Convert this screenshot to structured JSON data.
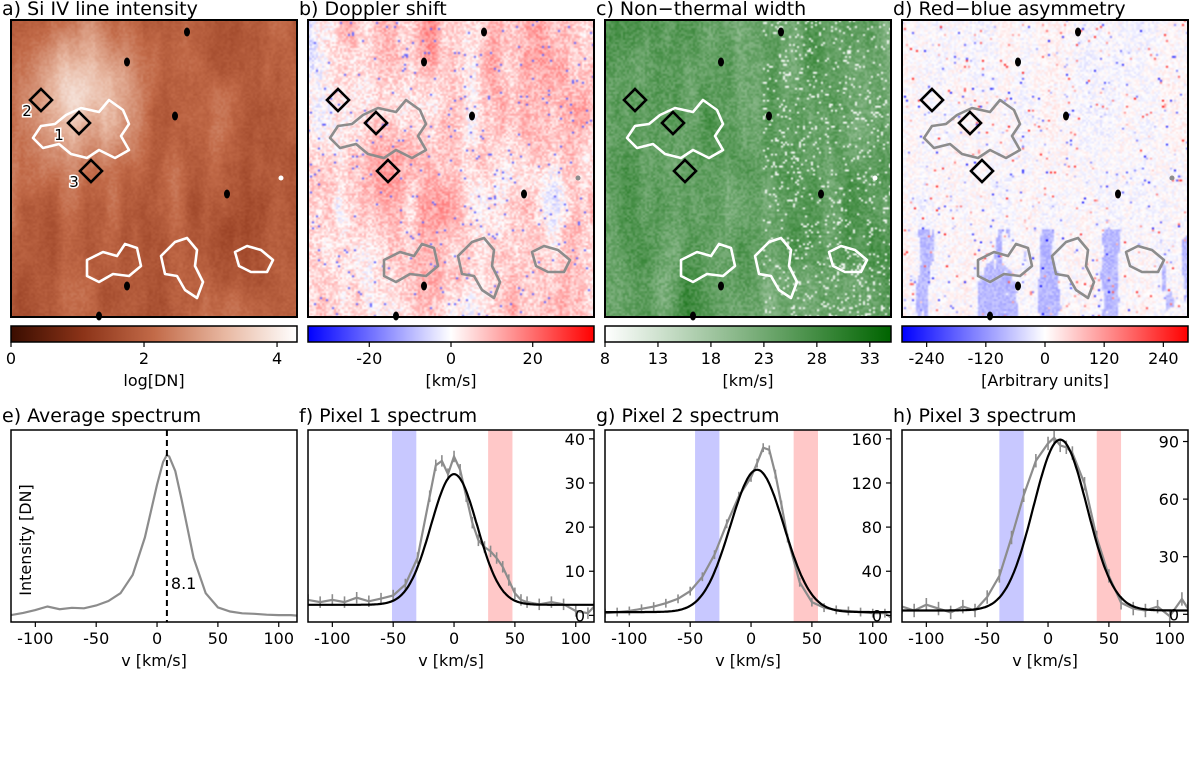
{
  "colors": {
    "intensity_map": [
      "#3a0d00",
      "#8b3318",
      "#c26a48",
      "#e8b8a2",
      "#ffffff"
    ],
    "doppler_map": [
      "#0000ff",
      "#ffffff",
      "#ff0000"
    ],
    "width_map": [
      "#ffffff",
      "#006400"
    ],
    "asym_map": [
      "#0000ff",
      "#ffffff",
      "#ff0000"
    ],
    "spectrum_line": "#8c8c8c",
    "fit_line": "#000000",
    "blue_band": "#c8c8ff",
    "red_band": "#ffc8c8",
    "contour_white": "#ffffff",
    "contour_gray": "#8c8c8c"
  },
  "chart_data": [
    {
      "type": "heatmap",
      "panel": "a",
      "title": "a) Si IV line intensity",
      "colorbar": {
        "label": "log[DN]",
        "range": [
          0,
          4.3
        ],
        "ticks": [
          0,
          2,
          4
        ],
        "tick_labels": [
          "0",
          "2",
          "4"
        ],
        "colormap": "intensity_map"
      },
      "contour_color": "contour_white",
      "markers": [
        {
          "label": "1"
        },
        {
          "label": "2"
        },
        {
          "label": "3"
        }
      ]
    },
    {
      "type": "heatmap",
      "panel": "b",
      "title": "b) Doppler shift",
      "colorbar": {
        "label": "[km/s]",
        "range": [
          -35,
          35
        ],
        "ticks": [
          -20,
          0,
          20
        ],
        "tick_labels": [
          "-20",
          "0",
          "20"
        ],
        "colormap": "doppler_map"
      },
      "contour_color": "contour_gray"
    },
    {
      "type": "heatmap",
      "panel": "c",
      "title": "c) Non−thermal width",
      "colorbar": {
        "label": "[km/s]",
        "range": [
          8,
          35
        ],
        "ticks": [
          8,
          13,
          18,
          23,
          28,
          33
        ],
        "tick_labels": [
          "8",
          "13",
          "18",
          "23",
          "28",
          "33"
        ],
        "colormap": "width_map"
      },
      "contour_color": "contour_white"
    },
    {
      "type": "heatmap",
      "panel": "d",
      "title": "d) Red−blue asymmetry",
      "colorbar": {
        "label": "[Arbitrary units]",
        "range": [
          -290,
          290
        ],
        "ticks": [
          -240,
          -120,
          0,
          120,
          240
        ],
        "tick_labels": [
          "-240",
          "-120",
          "0",
          "120",
          "240"
        ],
        "colormap": "asym_map"
      },
      "contour_color": "contour_gray"
    },
    {
      "type": "line",
      "panel": "e",
      "title": "e) Average spectrum",
      "xlabel": "v [km/s]",
      "ylabel": "Intensity [DN]",
      "xlim": [
        -120,
        115
      ],
      "ylim": [
        0,
        42
      ],
      "xticks": [
        -100,
        -50,
        0,
        50,
        100
      ],
      "xtick_labels": [
        "-100",
        "-50",
        "0",
        "50",
        "100"
      ],
      "yticks": [],
      "vline": {
        "x": 8.1,
        "label": "8.1"
      },
      "series": [
        {
          "name": "average",
          "color": "spectrum_line",
          "x": [
            -120,
            -110,
            -100,
            -90,
            -80,
            -70,
            -60,
            -50,
            -40,
            -30,
            -20,
            -10,
            0,
            5,
            8,
            10,
            15,
            20,
            30,
            40,
            50,
            60,
            70,
            80,
            90,
            100,
            110,
            115
          ],
          "y": [
            1.5,
            2.0,
            2.6,
            3.4,
            2.8,
            3.1,
            3.0,
            3.6,
            4.6,
            6.3,
            10.3,
            18.5,
            30.0,
            35.0,
            36.5,
            36.2,
            33.0,
            27.0,
            14.0,
            6.3,
            3.2,
            2.3,
            1.9,
            1.8,
            1.6,
            1.5,
            1.5,
            1.4
          ]
        }
      ]
    },
    {
      "type": "line",
      "panel": "f",
      "title": "f) Pixel 1 spectrum",
      "xlabel": "v [km/s]",
      "xlim": [
        -120,
        115
      ],
      "ylim": [
        -1.5,
        42
      ],
      "xticks": [
        -100,
        -50,
        0,
        50,
        100
      ],
      "xtick_labels": [
        "-100",
        "-50",
        "0",
        "50",
        "100"
      ],
      "yticks": [
        0,
        10,
        20,
        30,
        40
      ],
      "ytick_labels": [
        "0",
        "10",
        "20",
        "30",
        "40"
      ],
      "bands": [
        {
          "from": -51,
          "to": -31,
          "color": "blue_band"
        },
        {
          "from": 28,
          "to": 48,
          "color": "red_band"
        }
      ],
      "series": [
        {
          "name": "observed",
          "color": "spectrum_line",
          "errorbars": true,
          "x": [
            -120,
            -110,
            -100,
            -90,
            -80,
            -70,
            -60,
            -50,
            -40,
            -30,
            -20,
            -15,
            -10,
            -5,
            0,
            5,
            10,
            15,
            20,
            25,
            30,
            35,
            40,
            45,
            50,
            55,
            60,
            70,
            80,
            90,
            100,
            110,
            115
          ],
          "y": [
            3.5,
            3.0,
            3.5,
            3.0,
            4.0,
            3.2,
            3.8,
            4.5,
            7.0,
            13.0,
            27.0,
            34.0,
            35.0,
            32.0,
            36.0,
            33.0,
            27.0,
            21.0,
            17.0,
            15.5,
            14.5,
            13.0,
            11.0,
            8.0,
            5.0,
            3.5,
            3.0,
            2.5,
            3.0,
            2.5,
            1.0,
            0.5,
            2.0
          ],
          "err": 1.3
        },
        {
          "name": "gaussian fit",
          "color": "fit_line",
          "model": "gaussian",
          "amplitude": 29.6,
          "center": 0,
          "sigma": 19,
          "baseline": 2.4
        }
      ]
    },
    {
      "type": "line",
      "panel": "g",
      "title": "g) Pixel 2 spectrum",
      "xlabel": "v [km/s]",
      "xlim": [
        -120,
        115
      ],
      "ylim": [
        -6,
        168
      ],
      "xticks": [
        -100,
        -50,
        0,
        50,
        100
      ],
      "xtick_labels": [
        "-100",
        "-50",
        "0",
        "50",
        "100"
      ],
      "yticks": [
        0,
        40,
        80,
        120,
        160
      ],
      "ytick_labels": [
        "0",
        "40",
        "80",
        "120",
        "160"
      ],
      "bands": [
        {
          "from": -46,
          "to": -26,
          "color": "blue_band"
        },
        {
          "from": 35,
          "to": 55,
          "color": "red_band"
        }
      ],
      "series": [
        {
          "name": "observed",
          "color": "spectrum_line",
          "errorbars": true,
          "x": [
            -120,
            -110,
            -100,
            -90,
            -80,
            -70,
            -60,
            -50,
            -40,
            -30,
            -20,
            -10,
            0,
            5,
            10,
            15,
            20,
            25,
            30,
            40,
            50,
            60,
            70,
            80,
            90,
            100,
            110,
            115
          ],
          "y": [
            2.0,
            3.0,
            4.0,
            6.0,
            8.0,
            11.0,
            15.0,
            22.0,
            35.0,
            55.0,
            83.0,
            108.0,
            125.0,
            138.0,
            152.0,
            150.0,
            128.0,
            100.0,
            70.0,
            30.0,
            12.0,
            7.0,
            5.0,
            4.0,
            3.0,
            2.0,
            2.0,
            -2.0
          ],
          "err": 4
        },
        {
          "name": "gaussian fit",
          "color": "fit_line",
          "model": "gaussian",
          "amplitude": 129,
          "center": 5,
          "sigma": 22,
          "baseline": 3
        }
      ]
    },
    {
      "type": "line",
      "panel": "h",
      "title": "h) Pixel 3 spectrum",
      "xlabel": "v [km/s]",
      "xlim": [
        -120,
        115
      ],
      "ylim": [
        -4,
        96
      ],
      "xticks": [
        -100,
        -50,
        0,
        50,
        100
      ],
      "xtick_labels": [
        "-100",
        "-50",
        "0",
        "50",
        "100"
      ],
      "yticks": [
        0,
        30,
        60,
        90
      ],
      "ytick_labels": [
        "0",
        "30",
        "60",
        "90"
      ],
      "bands": [
        {
          "from": -40,
          "to": -20,
          "color": "blue_band"
        },
        {
          "from": 40,
          "to": 60,
          "color": "red_band"
        }
      ],
      "series": [
        {
          "name": "observed",
          "color": "spectrum_line",
          "errorbars": true,
          "x": [
            -120,
            -110,
            -100,
            -90,
            -80,
            -70,
            -60,
            -50,
            -40,
            -30,
            -20,
            -10,
            0,
            5,
            10,
            15,
            20,
            30,
            40,
            50,
            60,
            70,
            80,
            90,
            100,
            110,
            115
          ],
          "y": [
            4.0,
            2.0,
            5.0,
            3.0,
            1.0,
            4.0,
            2.0,
            9.0,
            20.0,
            40.0,
            62.0,
            80.0,
            89.0,
            92.0,
            88.0,
            87.0,
            84.0,
            68.0,
            40.0,
            20.0,
            6.0,
            3.0,
            2.0,
            4.0,
            -1.0,
            8.0,
            3.0
          ],
          "err": 3.5
        },
        {
          "name": "gaussian fit",
          "color": "fit_line",
          "model": "gaussian",
          "amplitude": 89,
          "center": 10,
          "sigma": 22,
          "baseline": 2
        }
      ]
    }
  ]
}
